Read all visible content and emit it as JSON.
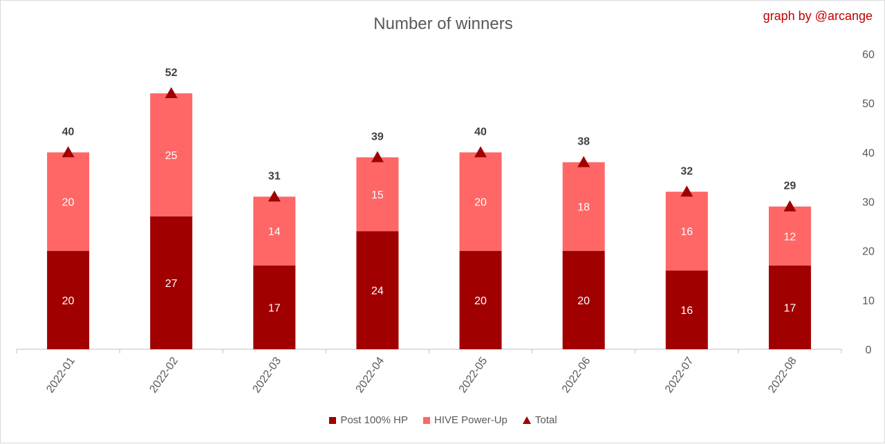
{
  "credit": "graph by @arcange",
  "colors": {
    "post": "#a00000",
    "powerup": "#ff6666",
    "total": "#a00000",
    "credit": "#c00000"
  },
  "chart_data": {
    "type": "bar",
    "stacked": true,
    "title": "Number of winners",
    "categories": [
      "2022-01",
      "2022-02",
      "2022-03",
      "2022-04",
      "2022-05",
      "2022-06",
      "2022-07",
      "2022-08"
    ],
    "series": [
      {
        "name": "Post 100% HP",
        "values": [
          20,
          27,
          17,
          24,
          20,
          20,
          16,
          17
        ]
      },
      {
        "name": "HIVE Power-Up",
        "values": [
          20,
          25,
          14,
          15,
          20,
          18,
          16,
          12
        ]
      },
      {
        "name": "Total",
        "type": "marker",
        "values": [
          40,
          52,
          31,
          39,
          40,
          38,
          32,
          29
        ]
      }
    ],
    "ylim": [
      0,
      60
    ],
    "yticks": [
      0,
      10,
      20,
      30,
      40,
      50,
      60
    ],
    "y_axis_side": "right",
    "grid": false,
    "legend_position": "bottom"
  }
}
